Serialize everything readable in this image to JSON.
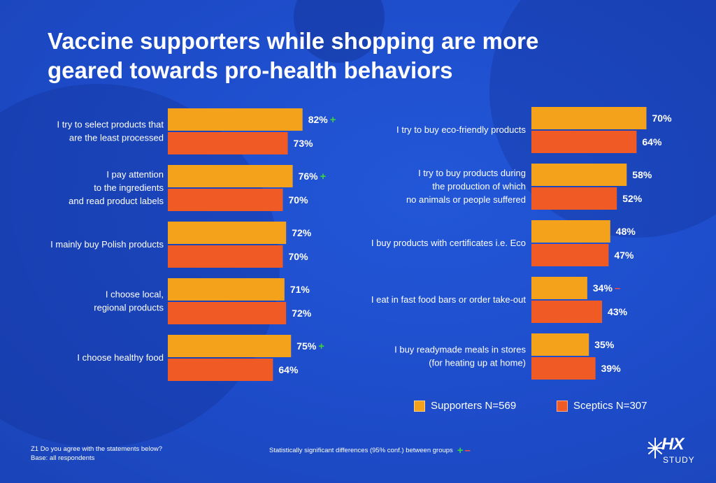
{
  "title_lines": [
    "Vaccine supporters while shopping are more",
    "geared towards pro-health behaviors"
  ],
  "colors": {
    "supporters": "#f4a21b",
    "sceptics": "#f05a24",
    "background": "#1f4fd0",
    "plus": "#3cd33c",
    "minus": "#ff4a3d"
  },
  "legend": {
    "supporters": "Supporters N=569",
    "sceptics": "Sceptics N=307"
  },
  "chart_data": {
    "type": "bar",
    "orientation": "horizontal",
    "series_names": [
      "Supporters N=569",
      "Sceptics N=307"
    ],
    "panels": [
      {
        "categories": [
          [
            "I try to select products that",
            "are the least processed"
          ],
          [
            "I pay attention",
            "to the ingredients",
            "and read product labels"
          ],
          [
            "I mainly buy Polish products"
          ],
          [
            "I choose local,",
            "regional products"
          ],
          [
            "I choose healthy food"
          ]
        ],
        "supporters": [
          82,
          76,
          72,
          71,
          75
        ],
        "sceptics": [
          73,
          70,
          70,
          72,
          64
        ],
        "significance": [
          "+",
          "+",
          "",
          "",
          "+"
        ]
      },
      {
        "categories": [
          [
            "I try to buy eco-friendly products"
          ],
          [
            "I try to buy products during",
            "the production of which",
            "no animals or people suffered"
          ],
          [
            "I buy products with certificates i.e. Eco"
          ],
          [
            "I eat in fast food bars or order take-out"
          ],
          [
            "I buy readymade meals in stores",
            "(for heating up at home)"
          ]
        ],
        "supporters": [
          70,
          58,
          48,
          34,
          35
        ],
        "sceptics": [
          64,
          52,
          47,
          43,
          39
        ],
        "significance": [
          "",
          "",
          "",
          "-",
          ""
        ]
      }
    ],
    "value_suffix": "%"
  },
  "footnote": {
    "question": "Z1 Do you agree with the statements below?",
    "base": "Base: all respondents"
  },
  "significance_note": "Statistically significant differences (95% conf.) between groups",
  "sig_symbols": {
    "plus": "+",
    "minus": "–"
  },
  "logo": {
    "brand": "HX",
    "sub": "STUDY"
  }
}
